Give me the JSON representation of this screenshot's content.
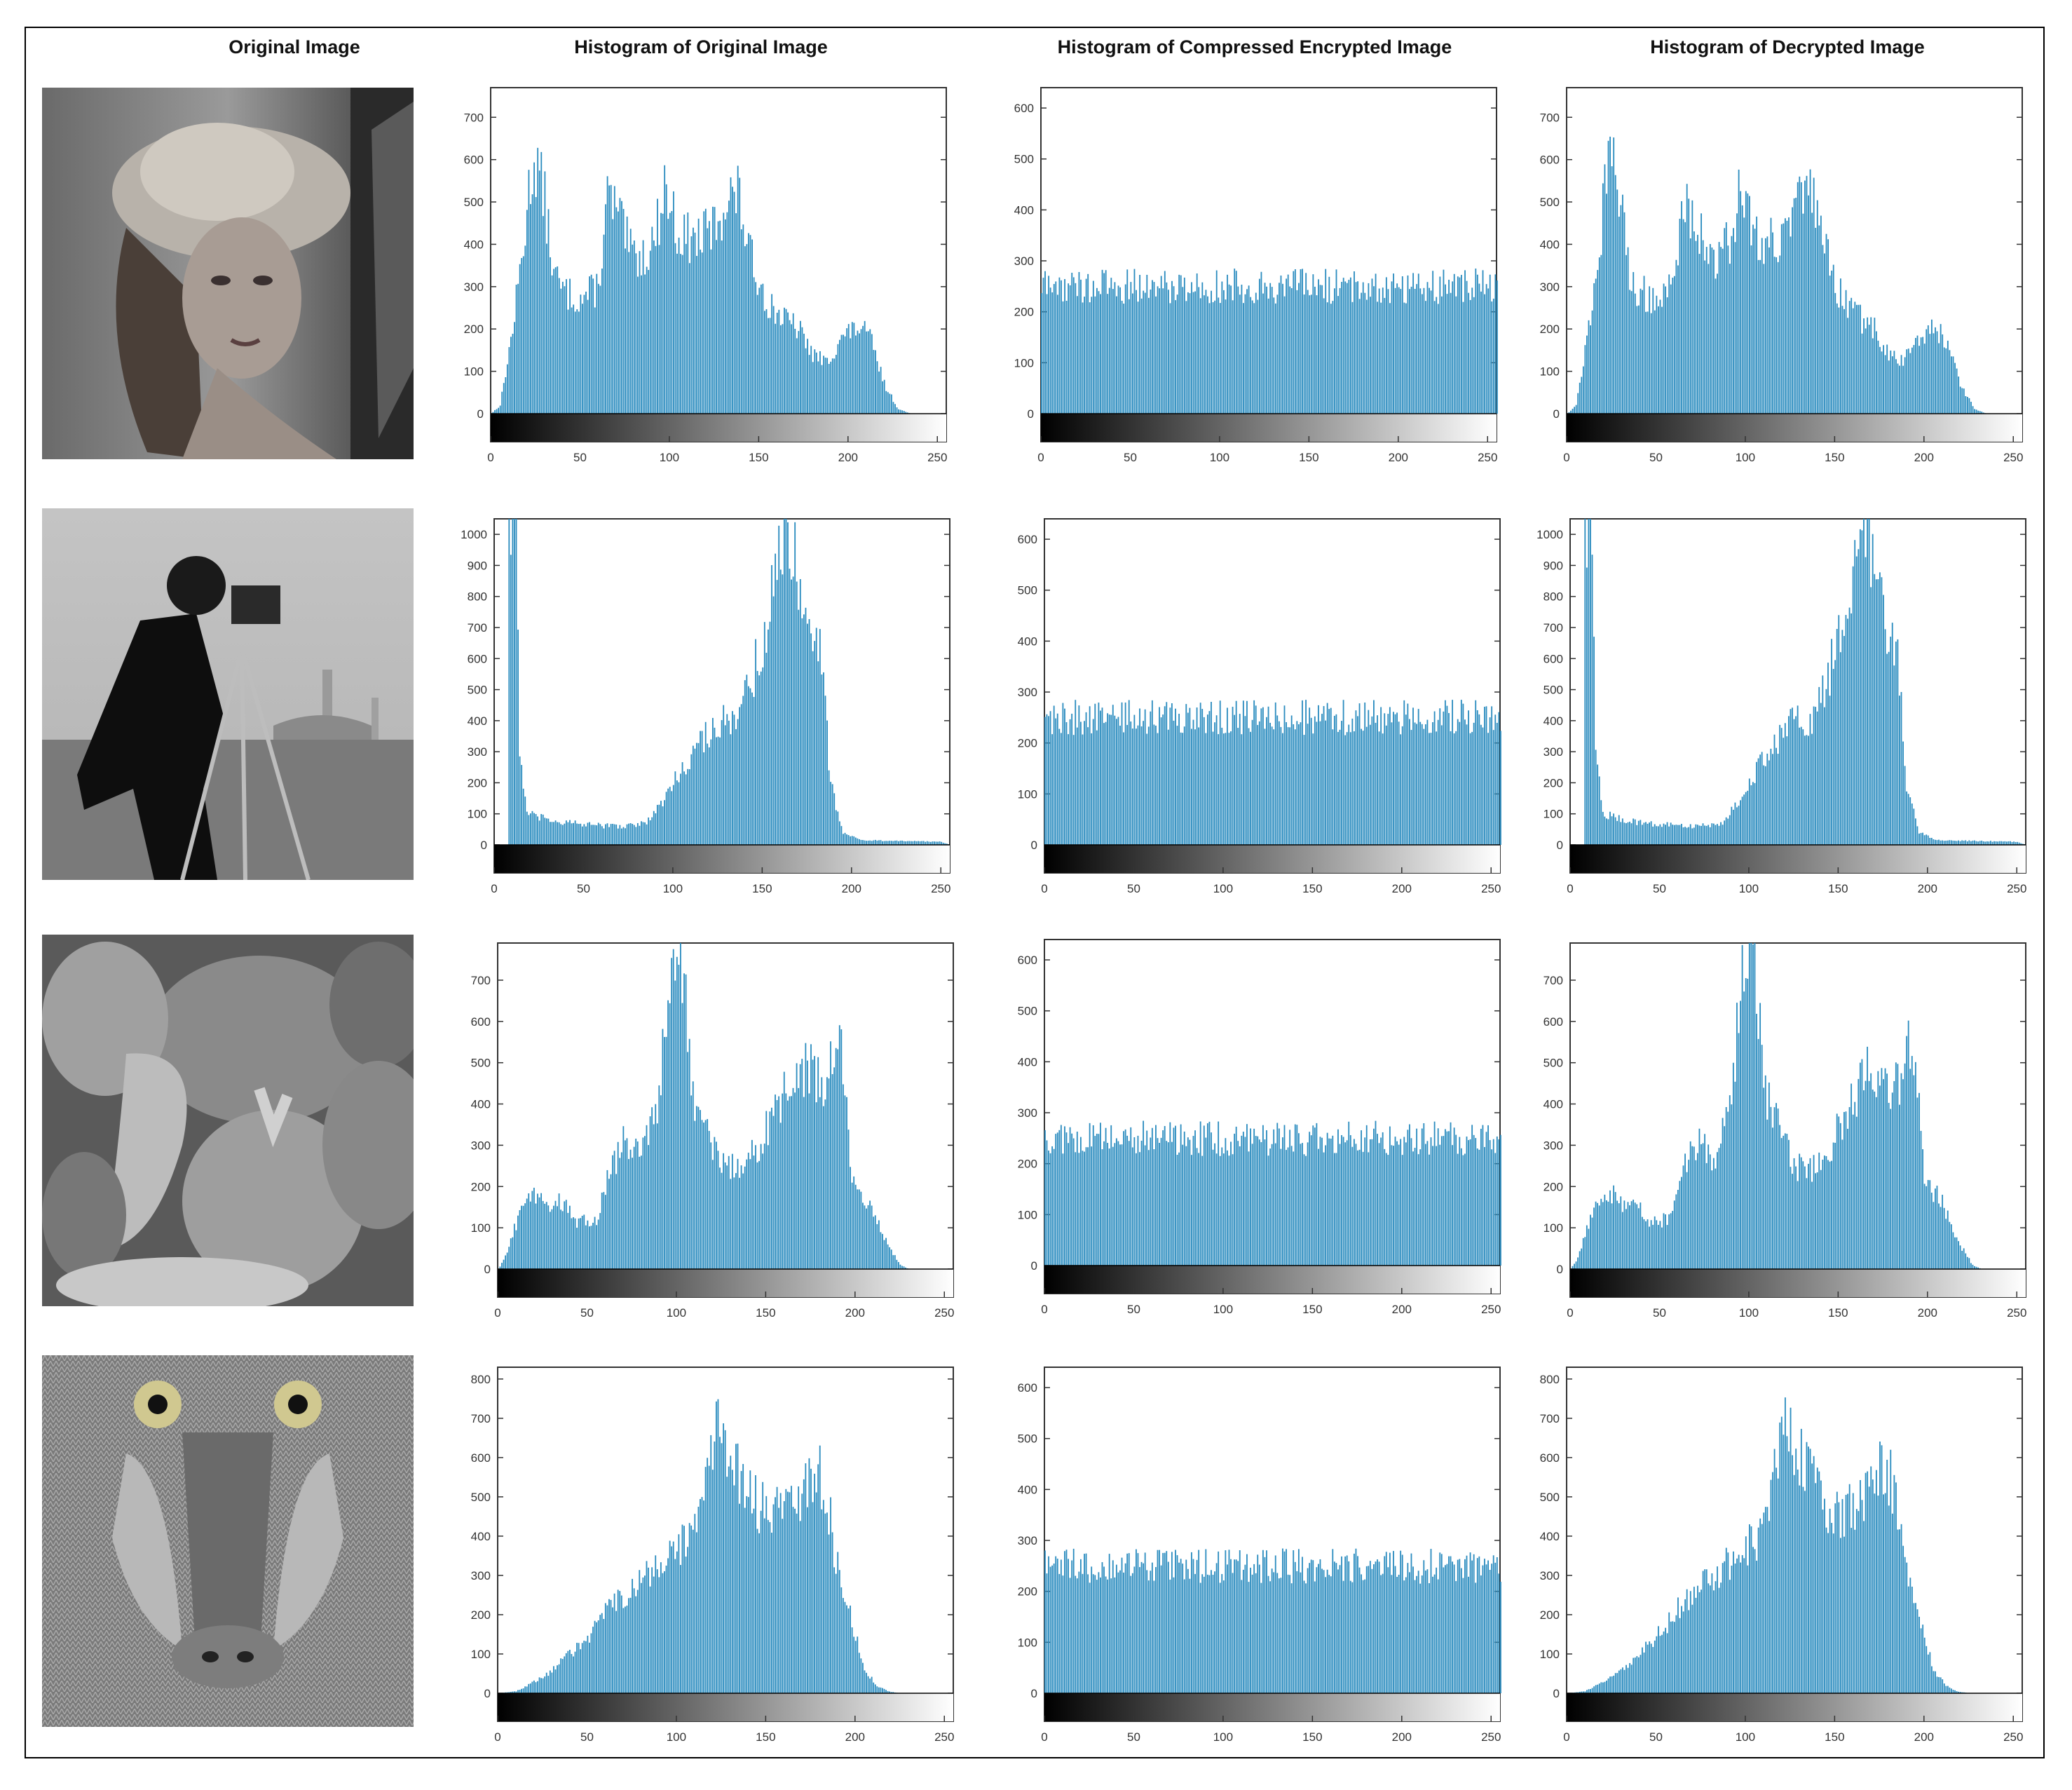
{
  "titles": {
    "original": "Original Image",
    "hist_original": "Histogram of Original Image",
    "hist_encrypted": "Histogram of Compressed Encrypted Image",
    "hist_decrypted": "Histogram of Decrypted Image"
  },
  "colors": {
    "bar": "#2b8cbf",
    "axis": "#000000",
    "frame": "#000000"
  },
  "images": [
    {
      "name": "woman-in-hat-photo"
    },
    {
      "name": "cameraman-photo"
    },
    {
      "name": "peppers-photo"
    },
    {
      "name": "baboon-photo"
    }
  ],
  "chart_data": [
    {
      "type": "bar",
      "row": 0,
      "column": "original",
      "x_ticks": [
        0,
        50,
        100,
        150,
        200,
        250
      ],
      "y_ticks": [
        0,
        100,
        200,
        300,
        400,
        500,
        600,
        700
      ],
      "xlim": [
        0,
        255
      ],
      "ylim": [
        0,
        770
      ],
      "profile": [
        [
          0,
          0
        ],
        [
          5,
          20
        ],
        [
          12,
          200
        ],
        [
          18,
          400
        ],
        [
          22,
          560
        ],
        [
          25,
          600
        ],
        [
          30,
          500
        ],
        [
          35,
          330
        ],
        [
          40,
          290
        ],
        [
          50,
          270
        ],
        [
          60,
          300
        ],
        [
          65,
          510
        ],
        [
          70,
          480
        ],
        [
          78,
          380
        ],
        [
          85,
          370
        ],
        [
          92,
          420
        ],
        [
          97,
          540
        ],
        [
          105,
          420
        ],
        [
          115,
          410
        ],
        [
          125,
          440
        ],
        [
          132,
          510
        ],
        [
          138,
          520
        ],
        [
          145,
          370
        ],
        [
          155,
          260
        ],
        [
          165,
          220
        ],
        [
          172,
          200
        ],
        [
          180,
          140
        ],
        [
          188,
          120
        ],
        [
          195,
          175
        ],
        [
          205,
          205
        ],
        [
          212,
          180
        ],
        [
          220,
          70
        ],
        [
          228,
          10
        ],
        [
          235,
          0
        ],
        [
          255,
          0
        ]
      ]
    },
    {
      "type": "bar",
      "row": 0,
      "column": "compressed-encrypted",
      "x_ticks": [
        0,
        50,
        100,
        150,
        200,
        250
      ],
      "y_ticks": [
        0,
        100,
        200,
        300,
        400,
        500,
        600
      ],
      "xlim": [
        0,
        255
      ],
      "ylim": [
        0,
        640
      ],
      "profile": [
        [
          0,
          265
        ],
        [
          255,
          265
        ]
      ]
    },
    {
      "type": "bar",
      "row": 0,
      "column": "decrypted",
      "x_ticks": [
        0,
        50,
        100,
        150,
        200,
        250
      ],
      "y_ticks": [
        0,
        100,
        200,
        300,
        400,
        500,
        600,
        700
      ],
      "xlim": [
        0,
        255
      ],
      "ylim": [
        0,
        770
      ],
      "profile": [
        [
          0,
          0
        ],
        [
          5,
          20
        ],
        [
          12,
          200
        ],
        [
          18,
          400
        ],
        [
          22,
          560
        ],
        [
          25,
          600
        ],
        [
          30,
          500
        ],
        [
          35,
          330
        ],
        [
          40,
          290
        ],
        [
          50,
          270
        ],
        [
          60,
          300
        ],
        [
          65,
          510
        ],
        [
          70,
          480
        ],
        [
          78,
          380
        ],
        [
          85,
          370
        ],
        [
          92,
          420
        ],
        [
          97,
          540
        ],
        [
          105,
          420
        ],
        [
          115,
          410
        ],
        [
          125,
          440
        ],
        [
          132,
          510
        ],
        [
          138,
          520
        ],
        [
          145,
          370
        ],
        [
          155,
          260
        ],
        [
          165,
          220
        ],
        [
          172,
          200
        ],
        [
          180,
          140
        ],
        [
          188,
          120
        ],
        [
          195,
          175
        ],
        [
          205,
          205
        ],
        [
          212,
          180
        ],
        [
          220,
          70
        ],
        [
          228,
          10
        ],
        [
          235,
          0
        ],
        [
          255,
          0
        ]
      ]
    },
    {
      "type": "bar",
      "row": 1,
      "column": "original",
      "x_ticks": [
        0,
        50,
        100,
        150,
        200,
        250
      ],
      "y_ticks": [
        0,
        100,
        200,
        300,
        400,
        500,
        600,
        700,
        800,
        900,
        1000
      ],
      "xlim": [
        0,
        255
      ],
      "ylim": [
        0,
        1050
      ],
      "profile": [
        [
          0,
          0
        ],
        [
          7,
          0
        ],
        [
          8,
          1050
        ],
        [
          12,
          1050
        ],
        [
          14,
          300
        ],
        [
          18,
          100
        ],
        [
          30,
          80
        ],
        [
          50,
          65
        ],
        [
          70,
          60
        ],
        [
          85,
          70
        ],
        [
          95,
          150
        ],
        [
          105,
          250
        ],
        [
          115,
          330
        ],
        [
          125,
          400
        ],
        [
          135,
          380
        ],
        [
          145,
          560
        ],
        [
          152,
          680
        ],
        [
          158,
          900
        ],
        [
          162,
          1050
        ],
        [
          166,
          1000
        ],
        [
          172,
          800
        ],
        [
          178,
          700
        ],
        [
          183,
          600
        ],
        [
          188,
          200
        ],
        [
          195,
          40
        ],
        [
          205,
          15
        ],
        [
          230,
          12
        ],
        [
          250,
          10
        ],
        [
          255,
          0
        ]
      ]
    },
    {
      "type": "bar",
      "row": 1,
      "column": "compressed-encrypted",
      "x_ticks": [
        0,
        50,
        100,
        150,
        200,
        250
      ],
      "y_ticks": [
        0,
        100,
        200,
        300,
        400,
        500,
        600
      ],
      "xlim": [
        0,
        255
      ],
      "ylim": [
        0,
        640
      ],
      "profile": [
        [
          0,
          260
        ],
        [
          255,
          260
        ]
      ]
    },
    {
      "type": "bar",
      "row": 1,
      "column": "decrypted",
      "x_ticks": [
        0,
        50,
        100,
        150,
        200,
        250
      ],
      "y_ticks": [
        0,
        100,
        200,
        300,
        400,
        500,
        600,
        700,
        800,
        900,
        1000
      ],
      "xlim": [
        0,
        255
      ],
      "ylim": [
        0,
        1050
      ],
      "profile": [
        [
          0,
          0
        ],
        [
          7,
          0
        ],
        [
          8,
          1050
        ],
        [
          12,
          1050
        ],
        [
          14,
          300
        ],
        [
          18,
          100
        ],
        [
          30,
          80
        ],
        [
          50,
          65
        ],
        [
          70,
          60
        ],
        [
          85,
          70
        ],
        [
          95,
          150
        ],
        [
          105,
          250
        ],
        [
          115,
          330
        ],
        [
          125,
          400
        ],
        [
          135,
          380
        ],
        [
          145,
          560
        ],
        [
          152,
          680
        ],
        [
          158,
          900
        ],
        [
          162,
          1050
        ],
        [
          166,
          1000
        ],
        [
          172,
          800
        ],
        [
          178,
          700
        ],
        [
          183,
          600
        ],
        [
          188,
          200
        ],
        [
          195,
          40
        ],
        [
          205,
          15
        ],
        [
          230,
          12
        ],
        [
          250,
          10
        ],
        [
          255,
          0
        ]
      ]
    },
    {
      "type": "bar",
      "row": 2,
      "column": "original",
      "x_ticks": [
        0,
        50,
        100,
        150,
        200,
        250
      ],
      "y_ticks": [
        0,
        100,
        200,
        300,
        400,
        500,
        600,
        700
      ],
      "xlim": [
        0,
        255
      ],
      "ylim": [
        0,
        790
      ],
      "profile": [
        [
          0,
          0
        ],
        [
          3,
          20
        ],
        [
          10,
          110
        ],
        [
          18,
          180
        ],
        [
          25,
          180
        ],
        [
          30,
          150
        ],
        [
          38,
          170
        ],
        [
          42,
          110
        ],
        [
          55,
          120
        ],
        [
          62,
          230
        ],
        [
          70,
          310
        ],
        [
          80,
          270
        ],
        [
          90,
          420
        ],
        [
          95,
          680
        ],
        [
          100,
          780
        ],
        [
          103,
          750
        ],
        [
          108,
          440
        ],
        [
          115,
          350
        ],
        [
          125,
          250
        ],
        [
          135,
          240
        ],
        [
          145,
          300
        ],
        [
          155,
          380
        ],
        [
          165,
          470
        ],
        [
          175,
          480
        ],
        [
          180,
          440
        ],
        [
          185,
          470
        ],
        [
          190,
          560
        ],
        [
          193,
          500
        ],
        [
          198,
          220
        ],
        [
          208,
          160
        ],
        [
          215,
          80
        ],
        [
          225,
          10
        ],
        [
          230,
          0
        ],
        [
          255,
          0
        ]
      ]
    },
    {
      "type": "bar",
      "row": 2,
      "column": "compressed-encrypted",
      "x_ticks": [
        0,
        50,
        100,
        150,
        200,
        250
      ],
      "y_ticks": [
        0,
        100,
        200,
        300,
        400,
        500,
        600
      ],
      "xlim": [
        0,
        255
      ],
      "ylim": [
        0,
        640
      ],
      "profile": [
        [
          0,
          260
        ],
        [
          255,
          260
        ]
      ]
    },
    {
      "type": "bar",
      "row": 2,
      "column": "decrypted",
      "x_ticks": [
        0,
        50,
        100,
        150,
        200,
        250
      ],
      "y_ticks": [
        0,
        100,
        200,
        300,
        400,
        500,
        600,
        700
      ],
      "xlim": [
        0,
        255
      ],
      "ylim": [
        0,
        790
      ],
      "profile": [
        [
          0,
          0
        ],
        [
          3,
          20
        ],
        [
          10,
          110
        ],
        [
          18,
          180
        ],
        [
          25,
          180
        ],
        [
          30,
          150
        ],
        [
          38,
          170
        ],
        [
          42,
          110
        ],
        [
          55,
          120
        ],
        [
          62,
          230
        ],
        [
          70,
          310
        ],
        [
          80,
          270
        ],
        [
          90,
          420
        ],
        [
          95,
          680
        ],
        [
          100,
          780
        ],
        [
          103,
          750
        ],
        [
          108,
          440
        ],
        [
          115,
          350
        ],
        [
          125,
          250
        ],
        [
          135,
          240
        ],
        [
          145,
          300
        ],
        [
          155,
          380
        ],
        [
          165,
          470
        ],
        [
          175,
          480
        ],
        [
          180,
          440
        ],
        [
          185,
          470
        ],
        [
          190,
          560
        ],
        [
          193,
          500
        ],
        [
          198,
          220
        ],
        [
          208,
          160
        ],
        [
          215,
          80
        ],
        [
          225,
          10
        ],
        [
          230,
          0
        ],
        [
          255,
          0
        ]
      ]
    },
    {
      "type": "bar",
      "row": 3,
      "column": "original",
      "x_ticks": [
        0,
        50,
        100,
        150,
        200,
        250
      ],
      "y_ticks": [
        0,
        100,
        200,
        300,
        400,
        500,
        600,
        700,
        800
      ],
      "xlim": [
        0,
        255
      ],
      "ylim": [
        0,
        830
      ],
      "profile": [
        [
          0,
          0
        ],
        [
          10,
          5
        ],
        [
          25,
          40
        ],
        [
          40,
          100
        ],
        [
          55,
          170
        ],
        [
          65,
          230
        ],
        [
          75,
          270
        ],
        [
          85,
          300
        ],
        [
          95,
          360
        ],
        [
          105,
          380
        ],
        [
          112,
          470
        ],
        [
          118,
          600
        ],
        [
          122,
          660
        ],
        [
          128,
          620
        ],
        [
          135,
          560
        ],
        [
          145,
          480
        ],
        [
          155,
          460
        ],
        [
          165,
          480
        ],
        [
          172,
          540
        ],
        [
          178,
          580
        ],
        [
          183,
          520
        ],
        [
          190,
          320
        ],
        [
          198,
          180
        ],
        [
          205,
          60
        ],
        [
          212,
          20
        ],
        [
          218,
          5
        ],
        [
          225,
          0
        ],
        [
          255,
          0
        ]
      ]
    },
    {
      "type": "bar",
      "row": 3,
      "column": "compressed-encrypted",
      "x_ticks": [
        0,
        50,
        100,
        150,
        200,
        250
      ],
      "y_ticks": [
        0,
        100,
        200,
        300,
        400,
        500,
        600
      ],
      "xlim": [
        0,
        255
      ],
      "ylim": [
        0,
        640
      ],
      "profile": [
        [
          0,
          260
        ],
        [
          255,
          260
        ]
      ]
    },
    {
      "type": "bar",
      "row": 3,
      "column": "decrypted",
      "x_ticks": [
        0,
        50,
        100,
        150,
        200,
        250
      ],
      "y_ticks": [
        0,
        100,
        200,
        300,
        400,
        500,
        600,
        700,
        800
      ],
      "xlim": [
        0,
        255
      ],
      "ylim": [
        0,
        830
      ],
      "profile": [
        [
          0,
          0
        ],
        [
          10,
          5
        ],
        [
          25,
          40
        ],
        [
          40,
          100
        ],
        [
          55,
          170
        ],
        [
          65,
          230
        ],
        [
          75,
          270
        ],
        [
          85,
          300
        ],
        [
          95,
          360
        ],
        [
          105,
          380
        ],
        [
          112,
          470
        ],
        [
          118,
          600
        ],
        [
          122,
          660
        ],
        [
          128,
          620
        ],
        [
          135,
          560
        ],
        [
          145,
          480
        ],
        [
          155,
          460
        ],
        [
          165,
          480
        ],
        [
          172,
          540
        ],
        [
          178,
          580
        ],
        [
          183,
          520
        ],
        [
          190,
          320
        ],
        [
          198,
          180
        ],
        [
          205,
          60
        ],
        [
          212,
          20
        ],
        [
          218,
          5
        ],
        [
          225,
          0
        ],
        [
          255,
          0
        ]
      ]
    }
  ]
}
